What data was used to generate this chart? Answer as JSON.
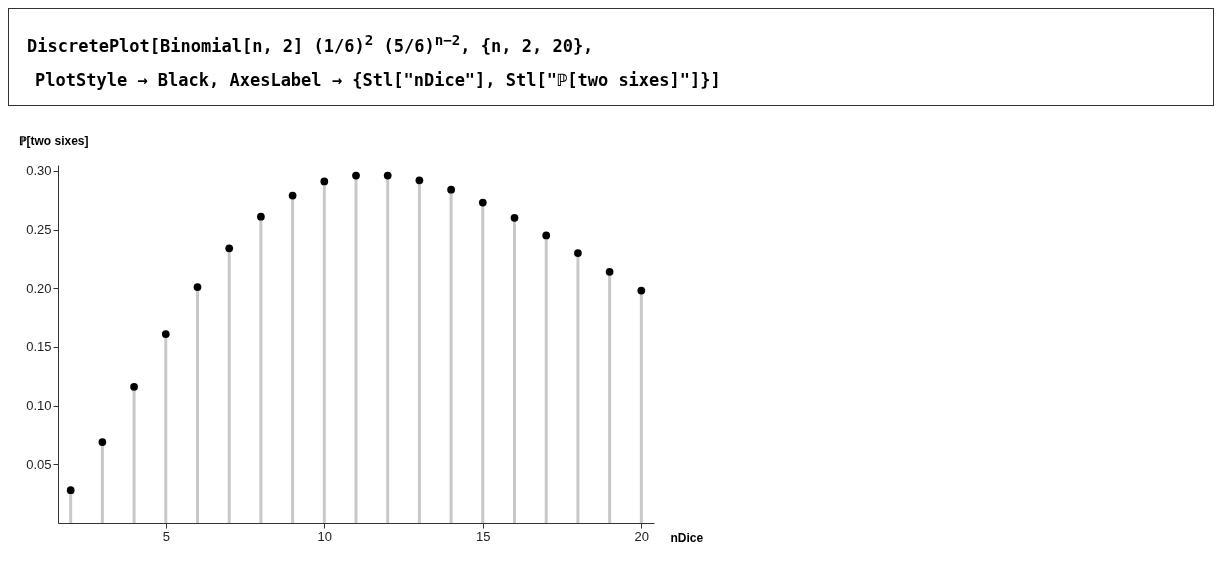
{
  "chart_data": {
    "type": "lollipop",
    "annotations": [
      "DiscretePlot[Binomial[n, 2] (1/6)$^{2}$ (5/6)$^{n−2}$, {n, 2, 20},",
      "PlotStyle → Black, AxesLabel → {Stl[\"nDice\"], Stl[\"ℙ[two sixes]\"]}]"
    ],
    "xlabel": "nDice",
    "ylabel": "ℙ[two sixes]",
    "x": [
      2,
      3,
      4,
      5,
      6,
      7,
      8,
      9,
      10,
      11,
      12,
      13,
      14,
      15,
      16,
      17,
      18,
      19,
      20
    ],
    "values": [
      0.028,
      0.069,
      0.116,
      0.161,
      0.201,
      0.234,
      0.261,
      0.279,
      0.291,
      0.296,
      0.296,
      0.292,
      0.284,
      0.273,
      0.26,
      0.245,
      0.23,
      0.214,
      0.198
    ],
    "color": "#000000",
    "marker": "circle",
    "xlim": [
      1.6,
      20.4
    ],
    "xticks": [
      5,
      10,
      15,
      20
    ],
    "ylim": [
      0,
      0.305
    ],
    "yticks": [
      0.05,
      {
        "value": 0.1,
        "label": "0.10"
      },
      0.15,
      {
        "value": 0.2,
        "label": "0.20"
      },
      0.25,
      {
        "value": 0.3,
        "label": "0.30"
      }
    ]
  }
}
